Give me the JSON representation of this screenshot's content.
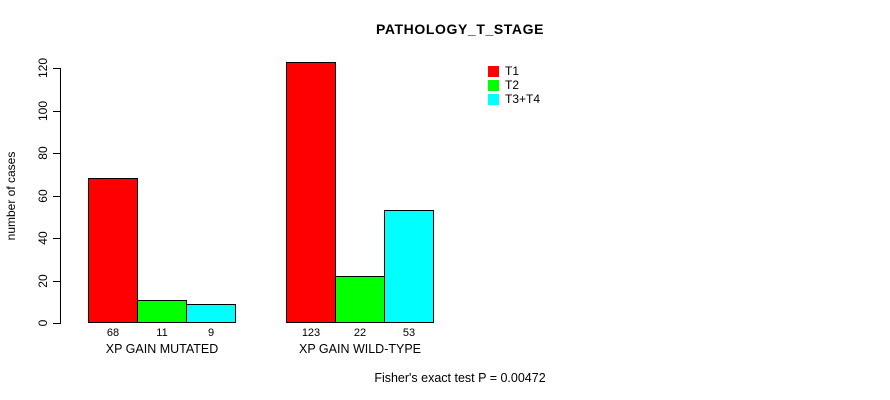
{
  "title": "PATHOLOGY_T_STAGE",
  "footer": "Fisher's exact test P = 0.00472",
  "chart_data": {
    "type": "bar",
    "title": "PATHOLOGY_T_STAGE",
    "xlabel": "",
    "ylabel": "number of cases",
    "categories": [
      "XP GAIN MUTATED",
      "XP GAIN WILD-TYPE"
    ],
    "series": [
      {
        "name": "T1",
        "color": "#ff0000",
        "values": [
          68,
          123
        ]
      },
      {
        "name": "T2",
        "color": "#00ff00",
        "values": [
          11,
          22
        ]
      },
      {
        "name": "T3+T4",
        "color": "#00ffff",
        "values": [
          9,
          53
        ]
      }
    ],
    "ylim": [
      0,
      120
    ],
    "yticks": [
      0,
      20,
      40,
      60,
      80,
      100,
      120
    ],
    "grid": false,
    "legend_position": "top-right",
    "show_value_labels": true,
    "bar_border_color": "#000000",
    "annotation": "Fisher's exact test P = 0.00472"
  }
}
